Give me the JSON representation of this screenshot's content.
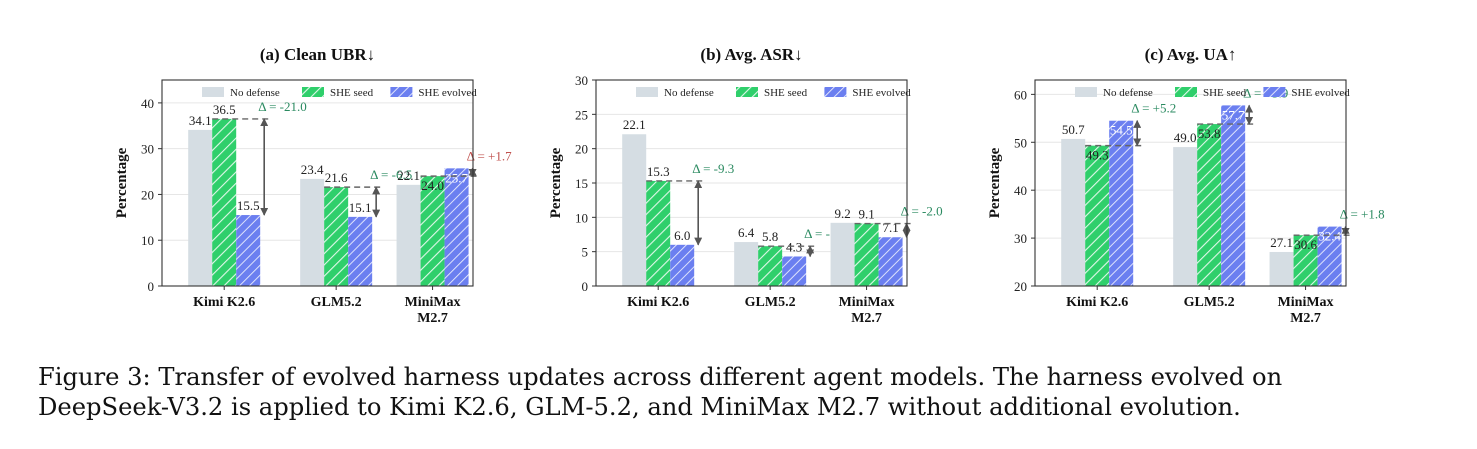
{
  "figure": {
    "legend": [
      "No defense",
      "SHE seed",
      "SHE evolved"
    ],
    "colors": {
      "no_defense": "#d5dde3",
      "she_seed": "#2fcf6b",
      "she_evolved": "#6b7ff0",
      "delta_good": "#2a8a60",
      "delta_bad": "#c0504d",
      "arrow": "#555555",
      "grid": "#e6e6e6",
      "axis": "#333333"
    },
    "caption": {
      "line1": "Figure 3:  Transfer of evolved harness updates across different agent models.  The harness evolved on",
      "line2": "DeepSeek-V3.2 is applied to Kimi K2.6, GLM-5.2, and MiniMax M2.7 without additional evolution."
    }
  },
  "chart_data": [
    {
      "type": "bar",
      "title": "(a) Clean UBR↓",
      "ylabel": "Percentage",
      "ylim": [
        0,
        45
      ],
      "yticks": [
        0,
        10,
        20,
        30,
        40
      ],
      "categories": [
        [
          "Kimi K2.6"
        ],
        [
          "GLM5.2"
        ],
        [
          "MiniMax",
          "M2.7"
        ]
      ],
      "series": [
        {
          "name": "No defense",
          "values": [
            34.1,
            23.4,
            22.1
          ],
          "labels": [
            "34.1",
            "23.4",
            "22.1"
          ]
        },
        {
          "name": "SHE seed",
          "values": [
            36.5,
            21.6,
            24.0
          ],
          "labels": [
            "36.5",
            "21.6",
            "24.0"
          ]
        },
        {
          "name": "SHE evolved",
          "values": [
            15.5,
            15.1,
            25.7
          ],
          "labels": [
            "15.5",
            "15.1",
            "25.7"
          ]
        }
      ],
      "deltas": [
        {
          "text": "Δ = -21.0",
          "good": true
        },
        {
          "text": "Δ = -6.5",
          "good": true
        },
        {
          "text": "Δ = +1.7",
          "good": false
        }
      ],
      "grid": true,
      "legend_position": "top"
    },
    {
      "type": "bar",
      "title": "(b) Avg. ASR↓",
      "ylabel": "Percentage",
      "ylim": [
        0,
        30
      ],
      "yticks": [
        0,
        5,
        10,
        15,
        20,
        25,
        30
      ],
      "categories": [
        [
          "Kimi K2.6"
        ],
        [
          "GLM5.2"
        ],
        [
          "MiniMax",
          "M2.7"
        ]
      ],
      "series": [
        {
          "name": "No defense",
          "values": [
            22.1,
            6.4,
            9.2
          ],
          "labels": [
            "22.1",
            "6.4",
            "9.2"
          ]
        },
        {
          "name": "SHE seed",
          "values": [
            15.3,
            5.8,
            9.1
          ],
          "labels": [
            "15.3",
            "5.8",
            "9.1"
          ]
        },
        {
          "name": "SHE evolved",
          "values": [
            6.0,
            4.3,
            7.1
          ],
          "labels": [
            "6.0",
            "4.3",
            "7.1"
          ]
        }
      ],
      "deltas": [
        {
          "text": "Δ = -9.3",
          "good": true
        },
        {
          "text": "Δ = -1.5",
          "good": true
        },
        {
          "text": "Δ = -2.0",
          "good": true
        }
      ],
      "grid": true,
      "legend_position": "top"
    },
    {
      "type": "bar",
      "title": "(c) Avg. UA↑",
      "ylabel": "Percentage",
      "ylim": [
        20,
        63
      ],
      "yticks": [
        20,
        30,
        40,
        50,
        60
      ],
      "categories": [
        [
          "Kimi K2.6"
        ],
        [
          "GLM5.2"
        ],
        [
          "MiniMax",
          "M2.7"
        ]
      ],
      "series": [
        {
          "name": "No defense",
          "values": [
            50.7,
            49.0,
            27.1
          ],
          "labels": [
            "50.7",
            "49.0",
            "27.1"
          ]
        },
        {
          "name": "SHE seed",
          "values": [
            49.3,
            53.8,
            30.6
          ],
          "labels": [
            "49.3",
            "53.8",
            "30.6"
          ]
        },
        {
          "name": "SHE evolved",
          "values": [
            54.5,
            57.7,
            32.4
          ],
          "labels": [
            "54.5",
            "57.7",
            "32.4"
          ]
        }
      ],
      "deltas": [
        {
          "text": "Δ = +5.2",
          "good": true
        },
        {
          "text": "Δ = +3.9",
          "good": true
        },
        {
          "text": "Δ = +1.8",
          "good": true
        }
      ],
      "grid": true,
      "legend_position": "top"
    }
  ]
}
